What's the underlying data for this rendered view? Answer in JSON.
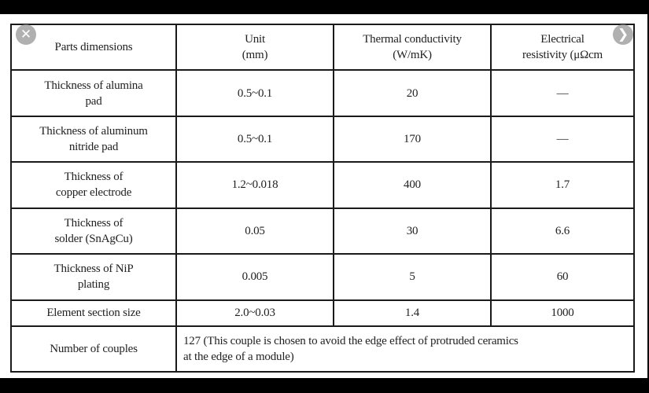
{
  "table": {
    "headers": [
      "Parts dimensions",
      "Unit\n(mm)",
      "Thermal conductivity\n(W/mK)",
      "Electrical\nresistivity (μΩcm"
    ],
    "rows": [
      [
        "Thickness of alumina\npad",
        "0.5~0.1",
        "20",
        "—"
      ],
      [
        "Thickness of aluminum\nnitride pad",
        "0.5~0.1",
        "170",
        "—"
      ],
      [
        "Thickness of\ncopper electrode",
        "1.2~0.018",
        "400",
        "1.7"
      ],
      [
        "Thickness of\nsolder (SnAgCu)",
        "0.05",
        "30",
        "6.6"
      ],
      [
        "Thickness of NiP\nplating",
        "0.005",
        "5",
        "60"
      ],
      [
        "Element section size",
        "2.0~0.03",
        "1.4",
        "1000"
      ]
    ],
    "last_row": {
      "label": "Number of couples",
      "note": "127 (This couple is chosen to avoid the edge effect of protruded ceramics\nat the edge of a module)"
    }
  },
  "viewer": {
    "close_icon_glyph": "✕",
    "next_icon_glyph": "❯"
  }
}
